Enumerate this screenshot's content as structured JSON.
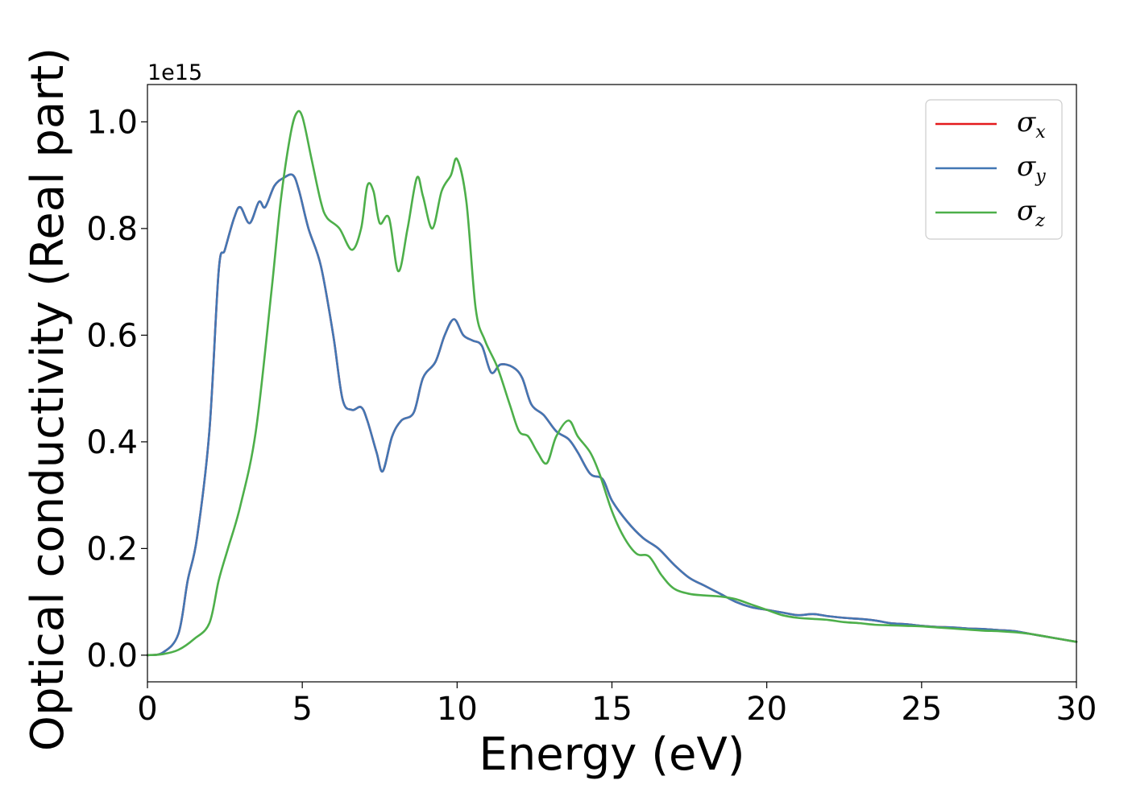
{
  "chart_data": {
    "type": "line",
    "xlabel": "Energy (eV)",
    "ylabel": "Optical conductivity (Real part)",
    "y_offset_label": "1e15",
    "xlim": [
      0,
      30
    ],
    "ylim": [
      -0.05,
      1.07
    ],
    "xticks": [
      0,
      5,
      10,
      15,
      20,
      25,
      30
    ],
    "xtick_labels": [
      "0",
      "5",
      "10",
      "15",
      "20",
      "25",
      "30"
    ],
    "yticks": [
      0.0,
      0.2,
      0.4,
      0.6,
      0.8,
      1.0
    ],
    "ytick_labels": [
      "0.0",
      "0.2",
      "0.4",
      "0.6",
      "0.8",
      "1.0"
    ],
    "grid": false,
    "legend_position": "top-right",
    "series": [
      {
        "name": "σx",
        "symbol": "σ",
        "subscript": "x",
        "color": "#e41a1c",
        "x": [
          0,
          0.5,
          1.0,
          1.3,
          1.6,
          2.0,
          2.3,
          2.5,
          2.8,
          3.0,
          3.3,
          3.6,
          3.8,
          4.1,
          4.4,
          4.7,
          4.9,
          5.2,
          5.6,
          6.0,
          6.3,
          6.6,
          6.9,
          7.1,
          7.4,
          7.6,
          7.9,
          8.2,
          8.6,
          8.9,
          9.3,
          9.6,
          9.9,
          10.2,
          10.5,
          10.8,
          11.1,
          11.4,
          11.8,
          12.1,
          12.4,
          12.8,
          13.2,
          13.6,
          13.9,
          14.3,
          14.7,
          15.0,
          15.5,
          16.0,
          16.5,
          17.0,
          17.5,
          18.0,
          18.5,
          19.0,
          19.5,
          20.0,
          20.5,
          21.0,
          21.5,
          22.0,
          22.5,
          23.0,
          23.5,
          24.0,
          24.5,
          25.0,
          25.5,
          26.0,
          26.5,
          27.0,
          27.5,
          28.0,
          28.5,
          29.0,
          29.5,
          30.0
        ],
        "values": [
          0.0,
          0.005,
          0.04,
          0.14,
          0.22,
          0.42,
          0.72,
          0.76,
          0.82,
          0.84,
          0.81,
          0.85,
          0.84,
          0.88,
          0.895,
          0.9,
          0.87,
          0.8,
          0.73,
          0.6,
          0.48,
          0.46,
          0.465,
          0.44,
          0.38,
          0.345,
          0.41,
          0.44,
          0.455,
          0.52,
          0.55,
          0.6,
          0.63,
          0.6,
          0.59,
          0.58,
          0.53,
          0.545,
          0.54,
          0.52,
          0.47,
          0.45,
          0.42,
          0.405,
          0.38,
          0.34,
          0.33,
          0.29,
          0.25,
          0.22,
          0.2,
          0.17,
          0.145,
          0.13,
          0.115,
          0.1,
          0.09,
          0.085,
          0.08,
          0.075,
          0.077,
          0.073,
          0.07,
          0.068,
          0.065,
          0.06,
          0.058,
          0.055,
          0.053,
          0.052,
          0.05,
          0.049,
          0.047,
          0.045,
          0.04,
          0.035,
          0.03,
          0.025
        ]
      },
      {
        "name": "σy",
        "symbol": "σ",
        "subscript": "y",
        "color": "#4277b4",
        "x": [
          0,
          0.5,
          1.0,
          1.3,
          1.6,
          2.0,
          2.3,
          2.5,
          2.8,
          3.0,
          3.3,
          3.6,
          3.8,
          4.1,
          4.4,
          4.7,
          4.9,
          5.2,
          5.6,
          6.0,
          6.3,
          6.6,
          6.9,
          7.1,
          7.4,
          7.6,
          7.9,
          8.2,
          8.6,
          8.9,
          9.3,
          9.6,
          9.9,
          10.2,
          10.5,
          10.8,
          11.1,
          11.4,
          11.8,
          12.1,
          12.4,
          12.8,
          13.2,
          13.6,
          13.9,
          14.3,
          14.7,
          15.0,
          15.5,
          16.0,
          16.5,
          17.0,
          17.5,
          18.0,
          18.5,
          19.0,
          19.5,
          20.0,
          20.5,
          21.0,
          21.5,
          22.0,
          22.5,
          23.0,
          23.5,
          24.0,
          24.5,
          25.0,
          25.5,
          26.0,
          26.5,
          27.0,
          27.5,
          28.0,
          28.5,
          29.0,
          29.5,
          30.0
        ],
        "values": [
          0.0,
          0.005,
          0.04,
          0.14,
          0.22,
          0.42,
          0.72,
          0.76,
          0.82,
          0.84,
          0.81,
          0.85,
          0.84,
          0.88,
          0.895,
          0.9,
          0.87,
          0.8,
          0.73,
          0.6,
          0.48,
          0.46,
          0.465,
          0.44,
          0.38,
          0.345,
          0.41,
          0.44,
          0.455,
          0.52,
          0.55,
          0.6,
          0.63,
          0.6,
          0.59,
          0.58,
          0.53,
          0.545,
          0.54,
          0.52,
          0.47,
          0.45,
          0.42,
          0.405,
          0.38,
          0.34,
          0.33,
          0.29,
          0.25,
          0.22,
          0.2,
          0.17,
          0.145,
          0.13,
          0.115,
          0.1,
          0.09,
          0.085,
          0.08,
          0.075,
          0.077,
          0.073,
          0.07,
          0.068,
          0.065,
          0.06,
          0.058,
          0.055,
          0.053,
          0.052,
          0.05,
          0.049,
          0.047,
          0.045,
          0.04,
          0.035,
          0.03,
          0.025
        ]
      },
      {
        "name": "σz",
        "symbol": "σ",
        "subscript": "z",
        "color": "#4daf4a",
        "x": [
          0,
          0.5,
          1.0,
          1.5,
          2.0,
          2.3,
          2.6,
          3.0,
          3.5,
          4.0,
          4.3,
          4.6,
          4.8,
          5.0,
          5.3,
          5.6,
          5.8,
          6.2,
          6.6,
          6.9,
          7.1,
          7.3,
          7.5,
          7.8,
          8.1,
          8.4,
          8.7,
          8.9,
          9.2,
          9.5,
          9.8,
          10.0,
          10.3,
          10.6,
          10.9,
          11.3,
          11.7,
          12.0,
          12.3,
          12.6,
          12.9,
          13.2,
          13.6,
          13.9,
          14.3,
          14.6,
          15.0,
          15.4,
          15.8,
          16.2,
          16.6,
          17.0,
          17.5,
          18.0,
          18.5,
          19.0,
          19.5,
          20.0,
          20.5,
          21.0,
          21.5,
          22.0,
          22.5,
          23.0,
          23.5,
          24.0,
          24.5,
          25.0,
          25.5,
          26.0,
          26.5,
          27.0,
          27.5,
          28.0,
          28.5,
          29.0,
          29.5,
          30.0
        ],
        "values": [
          0.0,
          0.002,
          0.01,
          0.03,
          0.06,
          0.14,
          0.2,
          0.28,
          0.42,
          0.68,
          0.85,
          0.97,
          1.015,
          1.01,
          0.93,
          0.85,
          0.82,
          0.8,
          0.76,
          0.8,
          0.88,
          0.87,
          0.81,
          0.82,
          0.72,
          0.8,
          0.895,
          0.86,
          0.8,
          0.87,
          0.9,
          0.93,
          0.85,
          0.65,
          0.59,
          0.54,
          0.47,
          0.42,
          0.41,
          0.38,
          0.36,
          0.41,
          0.44,
          0.41,
          0.38,
          0.34,
          0.27,
          0.22,
          0.19,
          0.185,
          0.15,
          0.125,
          0.115,
          0.112,
          0.11,
          0.105,
          0.095,
          0.085,
          0.075,
          0.07,
          0.068,
          0.066,
          0.062,
          0.06,
          0.057,
          0.056,
          0.055,
          0.054,
          0.052,
          0.05,
          0.048,
          0.046,
          0.045,
          0.043,
          0.04,
          0.035,
          0.03,
          0.025
        ]
      }
    ]
  }
}
